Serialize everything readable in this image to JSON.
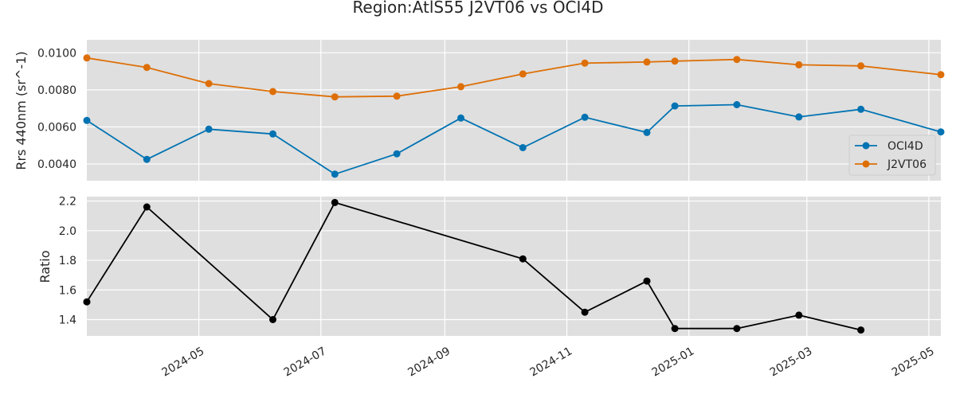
{
  "chart_data": {
    "type": "line",
    "title": "Region:AtlS55 J2VT06 vs OCI4D",
    "x_tick_labels": [
      "2024-05",
      "2024-07",
      "2024-09",
      "2024-11",
      "2025-01",
      "2025-03",
      "2025-05"
    ],
    "x_ticks": [
      "2024-05-01",
      "2024-07-01",
      "2024-09-01",
      "2024-11-01",
      "2025-01-01",
      "2025-03-01",
      "2025-05-01"
    ],
    "xlim": [
      "2024-03-06",
      "2025-05-07"
    ],
    "panels": [
      {
        "ylabel": "Rrs 440nm (sr^-1)",
        "ylim": [
          0.0031,
          0.0107
        ],
        "y_ticks": [
          0.004,
          0.006,
          0.008,
          0.01
        ],
        "y_tick_labels": [
          "0.0040",
          "0.0060",
          "0.0080",
          "0.0100"
        ],
        "grid": true,
        "legend_position": "lower-right",
        "series": [
          {
            "name": "OCI4D",
            "color": "#0173b2",
            "x": [
              "2024-03-06",
              "2024-04-05",
              "2024-05-06",
              "2024-06-07",
              "2024-07-08",
              "2024-08-08",
              "2024-09-09",
              "2024-10-10",
              "2024-11-10",
              "2024-12-11",
              "2024-12-25",
              "2025-01-25",
              "2025-02-25",
              "2025-03-28",
              "2025-05-07"
            ],
            "values": [
              0.00635,
              0.00425,
              0.00588,
              0.00562,
              0.00345,
              0.00455,
              0.00648,
              0.00488,
              0.00652,
              0.0057,
              0.00713,
              0.0072,
              0.00654,
              0.00695,
              0.00573
            ]
          },
          {
            "name": "J2VT06",
            "color": "#de6f06",
            "x": [
              "2024-03-06",
              "2024-04-05",
              "2024-05-06",
              "2024-06-07",
              "2024-07-08",
              "2024-08-08",
              "2024-09-09",
              "2024-10-10",
              "2024-11-10",
              "2024-12-11",
              "2024-12-25",
              "2025-01-25",
              "2025-02-25",
              "2025-03-28",
              "2025-05-07"
            ],
            "values": [
              0.00972,
              0.00921,
              0.00834,
              0.00791,
              0.00762,
              0.00766,
              0.00817,
              0.00886,
              0.00944,
              0.0095,
              0.00955,
              0.00964,
              0.00935,
              0.00929,
              0.00882
            ]
          }
        ]
      },
      {
        "ylabel": "Ratio",
        "ylim": [
          1.29,
          2.23
        ],
        "y_ticks": [
          1.4,
          1.6,
          1.8,
          2.0,
          2.2
        ],
        "y_tick_labels": [
          "1.4",
          "1.6",
          "1.8",
          "2.0",
          "2.2"
        ],
        "grid": true,
        "series": [
          {
            "color": "#000000",
            "x": [
              "2024-03-06",
              "2024-04-05",
              "2024-06-07",
              "2024-07-08",
              "2024-10-10",
              "2024-11-10",
              "2024-12-11",
              "2024-12-25",
              "2025-01-25",
              "2025-02-25",
              "2025-03-28"
            ],
            "values": [
              1.52,
              2.16,
              1.4,
              2.19,
              1.81,
              1.45,
              1.66,
              1.34,
              1.34,
              1.43,
              1.33
            ]
          }
        ]
      }
    ]
  }
}
